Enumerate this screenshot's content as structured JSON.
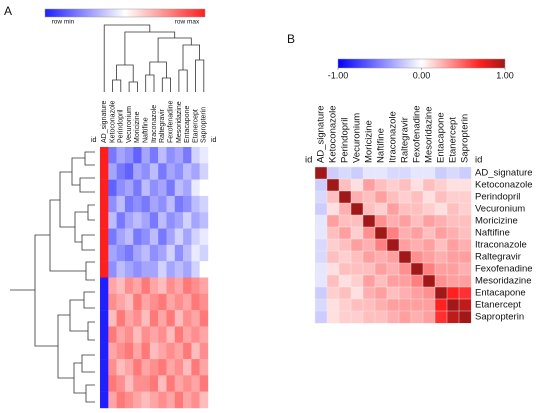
{
  "chart_data": [
    {
      "type": "heatmap",
      "panel_label": "A",
      "min_label": "row min",
      "max_label": "row max",
      "id_label": "id",
      "zlim": [
        0,
        1
      ],
      "colormap": [
        {
          "value": 0,
          "color": "#1f1fff"
        },
        {
          "value": 0.5,
          "color": "#ffffff"
        },
        {
          "value": 1,
          "color": "#ff1f1f"
        }
      ],
      "columns": [
        "AD_signature",
        "Ketoconazole",
        "Perindopril",
        "Vecuronium",
        "Moricizine",
        "Naftifine",
        "Itraconazole",
        "Raltegravir",
        "Fexofenadine",
        "Mesoridazine",
        "Entacapone",
        "Etanercept",
        "Sapropterin"
      ],
      "values": [
        [
          1,
          0.2,
          0.3,
          0.25,
          0.15,
          0.3,
          0.2,
          0.35,
          0.25,
          0.3,
          0.2,
          0.4,
          0.45
        ],
        [
          1,
          0.3,
          0.2,
          0.15,
          0.3,
          0.25,
          0.35,
          0.2,
          0.3,
          0.25,
          0.35,
          0.3,
          0.4
        ],
        [
          1,
          0.15,
          0.25,
          0.3,
          0.2,
          0.35,
          0.25,
          0.3,
          0.2,
          0.35,
          0.3,
          0.45,
          0.5
        ],
        [
          1,
          0.25,
          0.35,
          0.2,
          0.25,
          0.2,
          0.3,
          0.25,
          0.35,
          0.2,
          0.25,
          0.35,
          0.4
        ],
        [
          1,
          0.35,
          0.2,
          0.3,
          0.35,
          0.3,
          0.2,
          0.35,
          0.25,
          0.3,
          0.4,
          0.3,
          0.35
        ],
        [
          1,
          0.2,
          0.3,
          0.35,
          0.2,
          0.25,
          0.35,
          0.2,
          0.3,
          0.4,
          0.3,
          0.4,
          0.45
        ],
        [
          1,
          0.3,
          0.25,
          0.2,
          0.3,
          0.35,
          0.25,
          0.3,
          0.4,
          0.25,
          0.35,
          0.45,
          0.4
        ],
        [
          1,
          0.25,
          0.35,
          0.3,
          0.25,
          0.3,
          0.3,
          0.4,
          0.3,
          0.35,
          0.3,
          0.4,
          0.5
        ],
        [
          0,
          0.7,
          0.65,
          0.75,
          0.7,
          0.8,
          0.7,
          0.65,
          0.75,
          0.7,
          0.8,
          0.75,
          0.7
        ],
        [
          0,
          0.75,
          0.7,
          0.65,
          0.8,
          0.7,
          0.75,
          0.8,
          0.7,
          0.75,
          0.7,
          0.8,
          0.75
        ],
        [
          0,
          0.65,
          0.8,
          0.7,
          0.75,
          0.65,
          0.8,
          0.7,
          0.8,
          0.65,
          0.75,
          0.7,
          0.8
        ],
        [
          0,
          0.8,
          0.7,
          0.75,
          0.65,
          0.75,
          0.7,
          0.75,
          0.65,
          0.8,
          0.7,
          0.75,
          0.7
        ],
        [
          0,
          0.7,
          0.75,
          0.8,
          0.7,
          0.8,
          0.65,
          0.7,
          0.75,
          0.7,
          0.8,
          0.65,
          0.75
        ],
        [
          0,
          0.75,
          0.65,
          0.7,
          0.8,
          0.7,
          0.75,
          0.8,
          0.7,
          0.75,
          0.65,
          0.8,
          0.7
        ],
        [
          0,
          0.8,
          0.75,
          0.65,
          0.75,
          0.75,
          0.8,
          0.65,
          0.8,
          0.7,
          0.75,
          0.7,
          0.8
        ],
        [
          0,
          0.7,
          0.8,
          0.75,
          0.7,
          0.65,
          0.7,
          0.75,
          0.7,
          0.8,
          0.7,
          0.75,
          0.65
        ]
      ]
    },
    {
      "type": "heatmap",
      "panel_label": "B",
      "id_label": "id",
      "zlim": [
        -1,
        1
      ],
      "colorbar_ticks": [
        {
          "value": -1,
          "label": "-1.00"
        },
        {
          "value": 0,
          "label": "0.00"
        },
        {
          "value": 1,
          "label": "1.00"
        }
      ],
      "colormap": [
        {
          "value": -1,
          "color": "#0000ff"
        },
        {
          "value": 0,
          "color": "#ffffff"
        },
        {
          "value": 0.7,
          "color": "#ff2020"
        },
        {
          "value": 1,
          "color": "#a01818"
        }
      ],
      "columns": [
        "AD_signature",
        "Ketoconazole",
        "Perindopril",
        "Vecuronium",
        "Moricizine",
        "Naftifine",
        "Itraconazole",
        "Raltegravir",
        "Fexofenadine",
        "Mesoridazine",
        "Entacapone",
        "Etanercept",
        "Sapropterin"
      ],
      "rows": [
        "AD_signature",
        "Ketoconazole",
        "Perindopril",
        "Vecuronium",
        "Moricizine",
        "Naftifine",
        "Itraconazole",
        "Raltegravir",
        "Fexofenadine",
        "Mesoridazine",
        "Entacapone",
        "Etanercept",
        "Sapropterin"
      ],
      "values": [
        [
          1,
          -0.2,
          -0.15,
          -0.2,
          -0.1,
          -0.1,
          -0.15,
          -0.15,
          -0.1,
          -0.1,
          -0.2,
          -0.15,
          -0.2
        ],
        [
          -0.2,
          1,
          0.2,
          0.1,
          0.3,
          0.2,
          0.15,
          0.2,
          0.1,
          0.2,
          0.15,
          0.1,
          0.1
        ],
        [
          -0.15,
          0.2,
          1,
          0.25,
          0.2,
          0.3,
          0.2,
          0.15,
          0.2,
          0.1,
          0.2,
          0.15,
          0.15
        ],
        [
          -0.2,
          0.1,
          0.25,
          1,
          0.2,
          0.15,
          0.3,
          0.2,
          0.2,
          0.15,
          0.1,
          0.2,
          0.15
        ],
        [
          -0.1,
          0.3,
          0.2,
          0.2,
          1,
          0.35,
          0.25,
          0.3,
          0.2,
          0.3,
          0.25,
          0.2,
          0.2
        ],
        [
          -0.1,
          0.2,
          0.3,
          0.15,
          0.35,
          1,
          0.4,
          0.25,
          0.3,
          0.2,
          0.3,
          0.25,
          0.2
        ],
        [
          -0.15,
          0.15,
          0.2,
          0.3,
          0.25,
          0.4,
          1,
          0.3,
          0.25,
          0.3,
          0.2,
          0.3,
          0.25
        ],
        [
          -0.15,
          0.2,
          0.15,
          0.2,
          0.3,
          0.25,
          0.3,
          1,
          0.35,
          0.3,
          0.25,
          0.3,
          0.3
        ],
        [
          -0.1,
          0.1,
          0.2,
          0.2,
          0.2,
          0.3,
          0.25,
          0.35,
          1,
          0.4,
          0.3,
          0.3,
          0.25
        ],
        [
          -0.1,
          0.2,
          0.1,
          0.15,
          0.3,
          0.2,
          0.3,
          0.3,
          0.4,
          1,
          0.35,
          0.3,
          0.3
        ],
        [
          -0.2,
          0.15,
          0.2,
          0.1,
          0.25,
          0.3,
          0.2,
          0.25,
          0.3,
          0.35,
          1,
          0.7,
          0.65
        ],
        [
          -0.15,
          0.1,
          0.15,
          0.2,
          0.2,
          0.25,
          0.3,
          0.3,
          0.3,
          0.3,
          0.7,
          1,
          0.9
        ],
        [
          -0.2,
          0.1,
          0.15,
          0.15,
          0.2,
          0.2,
          0.25,
          0.3,
          0.25,
          0.3,
          0.65,
          0.9,
          1
        ]
      ]
    }
  ]
}
